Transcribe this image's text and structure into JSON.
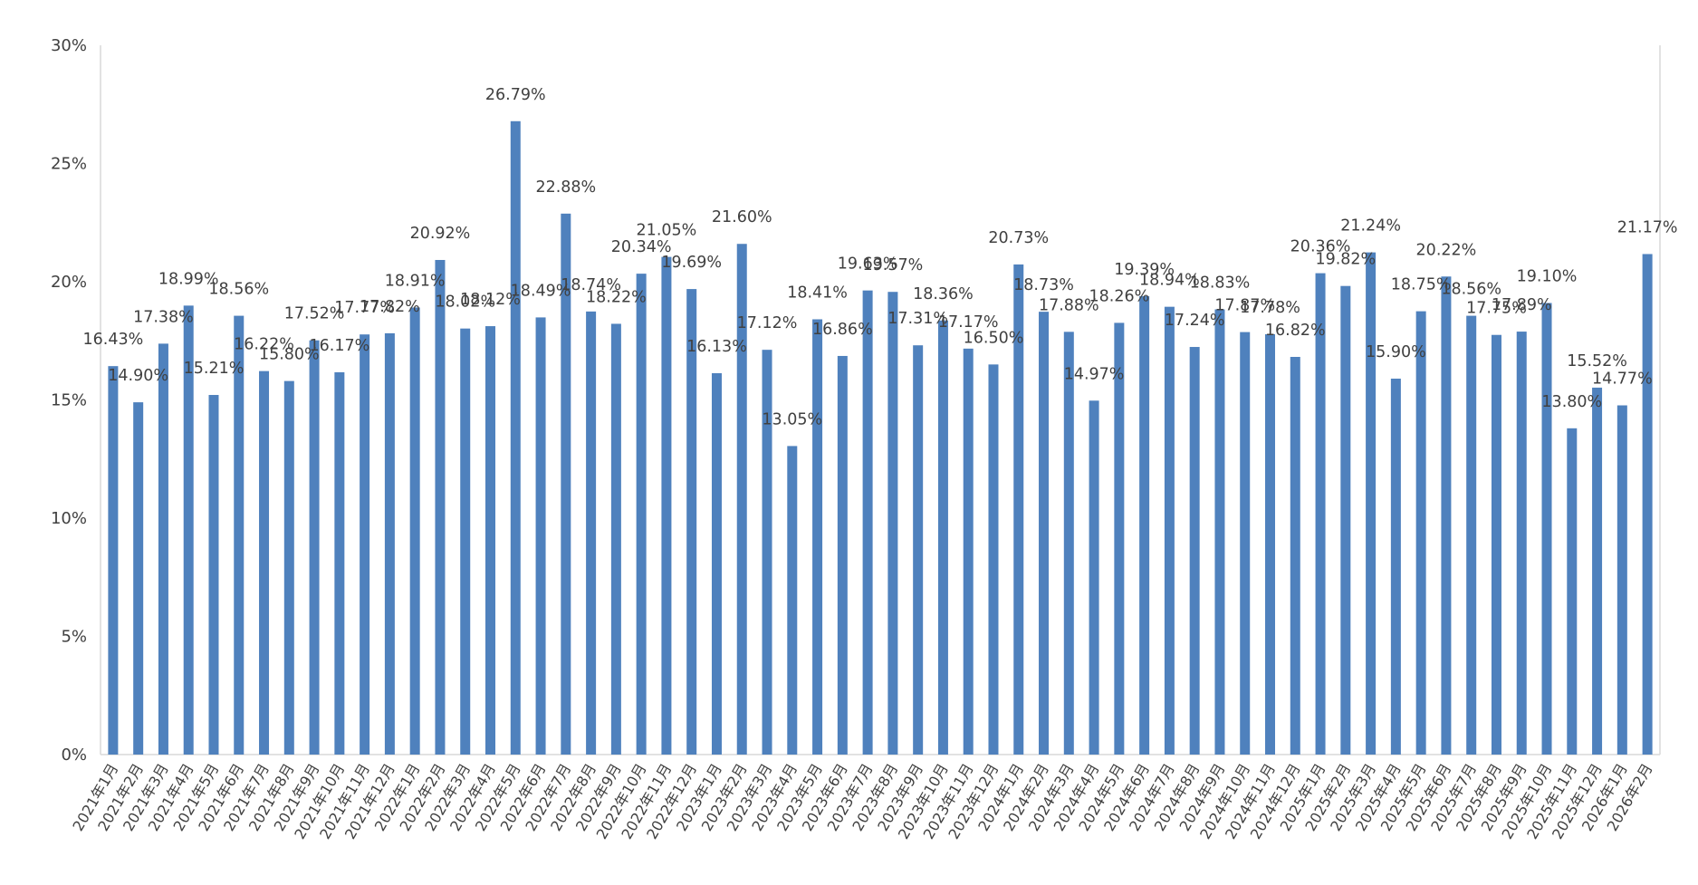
{
  "chart_data": {
    "type": "bar",
    "title": "",
    "xlabel": "",
    "ylabel": "",
    "ylim": [
      0,
      30
    ],
    "y_ticks": [
      "0%",
      "5%",
      "10%",
      "15%",
      "20%",
      "25%",
      "30%"
    ],
    "grid": false,
    "legend": "none",
    "bar_color": "#4F81BD",
    "axis_color": "#D9D9D9",
    "categories": [
      "2021年1月",
      "2021年2月",
      "2021年3月",
      "2021年4月",
      "2021年5月",
      "2021年6月",
      "2021年7月",
      "2021年8月",
      "2021年9月",
      "2021年10月",
      "2021年11月",
      "2021年12月",
      "2022年1月",
      "2022年2月",
      "2022年3月",
      "2022年4月",
      "2022年5月",
      "2022年6月",
      "2022年7月",
      "2022年8月",
      "2022年9月",
      "2022年10月",
      "2022年11月",
      "2022年12月",
      "2023年1月",
      "2023年2月",
      "2023年3月",
      "2023年4月",
      "2023年5月",
      "2023年6月",
      "2023年7月",
      "2023年8月",
      "2023年9月",
      "2023年10月",
      "2023年11月",
      "2023年12月",
      "2024年1月",
      "2024年2月",
      "2024年3月",
      "2024年4月",
      "2024年5月",
      "2024年6月",
      "2024年7月",
      "2024年8月",
      "2024年9月",
      "2024年10月",
      "2024年11月",
      "2024年12月",
      "2025年1月",
      "2025年2月",
      "2025年3月",
      "2025年4月",
      "2025年5月",
      "2025年6月",
      "2025年7月",
      "2025年8月",
      "2025年9月",
      "2025年10月",
      "2025年11月",
      "2025年12月",
      "2026年1月",
      "2026年2月"
    ],
    "values": [
      16.43,
      14.9,
      17.38,
      18.99,
      15.21,
      18.56,
      16.22,
      15.8,
      17.52,
      16.17,
      17.77,
      17.82,
      18.91,
      20.92,
      18.02,
      18.12,
      26.79,
      18.49,
      22.88,
      18.74,
      18.22,
      20.34,
      21.05,
      19.69,
      16.13,
      21.6,
      17.12,
      13.05,
      18.41,
      16.86,
      19.63,
      19.57,
      17.31,
      18.36,
      17.17,
      16.5,
      20.73,
      18.73,
      17.88,
      14.97,
      18.26,
      19.39,
      18.94,
      17.24,
      18.83,
      17.87,
      17.78,
      16.82,
      20.36,
      19.82,
      21.24,
      15.9,
      18.75,
      20.22,
      18.56,
      17.75,
      17.89,
      19.1,
      13.8,
      15.52,
      14.77,
      21.17
    ],
    "data_labels": [
      "16.43%",
      "14.90%",
      "17.38%",
      "18.99%",
      "15.21%",
      "18.56%",
      "16.22%",
      "15.80%",
      "17.52%",
      "16.17%",
      "17.77%",
      "17.82%",
      "18.91%",
      "20.92%",
      "18.02%",
      "18.12%",
      "26.79%",
      "18.49%",
      "22.88%",
      "18.74%",
      "18.22%",
      "20.34%",
      "21.05%",
      "19.69%",
      "16.13%",
      "21.60%",
      "17.12%",
      "13.05%",
      "18.41%",
      "16.86%",
      "19.63%",
      "19.57%",
      "17.31%",
      "18.36%",
      "17.17%",
      "16.50%",
      "20.73%",
      "18.73%",
      "17.88%",
      "14.97%",
      "18.26%",
      "19.39%",
      "18.94%",
      "17.24%",
      "18.83%",
      "17.87%",
      "17.78%",
      "16.82%",
      "20.36%",
      "19.82%",
      "21.24%",
      "15.90%",
      "18.75%",
      "20.22%",
      "18.56%",
      "17.75%",
      "17.89%",
      "19.10%",
      "13.80%",
      "15.52%",
      "14.77%",
      "21.17%"
    ]
  }
}
